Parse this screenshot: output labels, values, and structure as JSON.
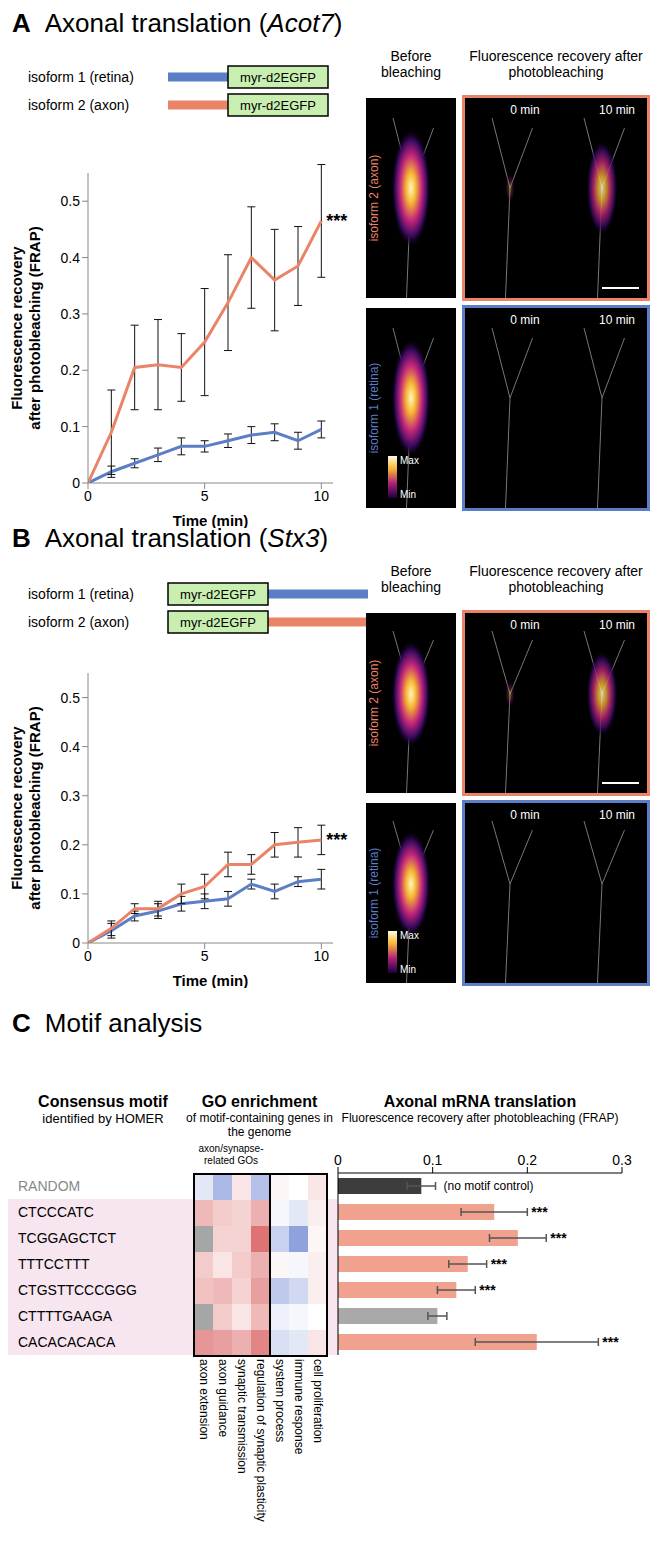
{
  "figure": {
    "image_texts": {
      "before": "Before bleaching",
      "after": "Fluorescence recovery after photobleaching",
      "times": [
        "0 min",
        "10 min"
      ],
      "colorbar": [
        "Max",
        "Min"
      ]
    }
  },
  "chart_data": [
    {
      "panel": "A",
      "type": "line",
      "title": "Axonal translation (Acot7)",
      "title_italic": "Acot7",
      "construct": "myr-d2EGFP",
      "construct_position": "end",
      "x_label": "Time (min)",
      "y_label": [
        "Fluorescence recovery",
        "after photobleaching (FRAP)"
      ],
      "x": [
        0,
        1,
        2,
        3,
        4,
        5,
        6,
        7,
        8,
        9,
        10
      ],
      "xlim": [
        0,
        10.5
      ],
      "xticks": [
        0,
        5,
        10
      ],
      "ylim": [
        0,
        0.55
      ],
      "yticks": [
        0,
        0.1,
        0.2,
        0.3,
        0.4,
        0.5
      ],
      "series": [
        {
          "name": "isoform 1 (retina)",
          "color": "#5b7ec6",
          "values": [
            0,
            0.02,
            0.035,
            0.05,
            0.065,
            0.065,
            0.075,
            0.085,
            0.09,
            0.075,
            0.095
          ],
          "errors": [
            0,
            0.01,
            0.008,
            0.012,
            0.015,
            0.01,
            0.012,
            0.015,
            0.015,
            0.015,
            0.015
          ]
        },
        {
          "name": "isoform 2 (axon)",
          "color": "#ea8468",
          "values": [
            0,
            0.09,
            0.205,
            0.21,
            0.205,
            0.25,
            0.32,
            0.4,
            0.36,
            0.385,
            0.465
          ],
          "errors": [
            0,
            0.075,
            0.075,
            0.08,
            0.06,
            0.095,
            0.085,
            0.09,
            0.09,
            0.07,
            0.1
          ]
        }
      ],
      "annotation": {
        "text": "***",
        "x": 10,
        "series": "isoform 2 (axon)"
      }
    },
    {
      "panel": "B",
      "type": "line",
      "title": "Axonal translation (Stx3)",
      "title_italic": "Stx3",
      "construct": "myr-d2EGFP",
      "construct_position": "start",
      "x_label": "Time (min)",
      "y_label": [
        "Fluorescence recovery",
        "after photobleaching (FRAP)"
      ],
      "x": [
        0,
        1,
        2,
        3,
        4,
        5,
        6,
        7,
        8,
        9,
        10
      ],
      "xlim": [
        0,
        10.5
      ],
      "xticks": [
        0,
        5,
        10
      ],
      "ylim": [
        0,
        0.55
      ],
      "yticks": [
        0,
        0.1,
        0.2,
        0.3,
        0.4,
        0.5
      ],
      "series": [
        {
          "name": "isoform 1 (retina)",
          "color": "#5b7ec6",
          "values": [
            0,
            0.025,
            0.055,
            0.065,
            0.08,
            0.085,
            0.09,
            0.12,
            0.105,
            0.125,
            0.13
          ],
          "errors": [
            0,
            0.015,
            0.01,
            0.015,
            0.015,
            0.015,
            0.015,
            0.01,
            0.015,
            0.01,
            0.02
          ]
        },
        {
          "name": "isoform 2 (axon)",
          "color": "#ea8468",
          "values": [
            0,
            0.03,
            0.07,
            0.07,
            0.1,
            0.115,
            0.16,
            0.16,
            0.2,
            0.205,
            0.21
          ],
          "errors": [
            0,
            0.015,
            0.01,
            0.015,
            0.02,
            0.025,
            0.025,
            0.02,
            0.025,
            0.03,
            0.03
          ]
        }
      ],
      "annotation": {
        "text": "***",
        "x": 10,
        "series": "isoform 2 (axon)"
      }
    },
    {
      "panel": "C",
      "type": "bar",
      "orientation": "horizontal",
      "title": "Motif analysis",
      "category_header": [
        "Consensus motif",
        "identified by HOMER"
      ],
      "x_label": [
        "Axonal mRNA translation",
        "Fluorescence recovery after photobleaching (FRAP)"
      ],
      "categories": [
        "RANDOM",
        "CTCCCATC",
        "TCGGAGCTCT",
        "TTTCCTTT",
        "CTGSTTCCCGGG",
        "CTTTTGAAGA",
        "CACACACACA"
      ],
      "values": [
        0.088,
        0.165,
        0.19,
        0.137,
        0.125,
        0.105,
        0.21
      ],
      "errors": [
        0.015,
        0.035,
        0.03,
        0.02,
        0.02,
        0.01,
        0.065
      ],
      "colors": [
        "#3d3d3d",
        "#f0a28e",
        "#f0a28e",
        "#f0a28e",
        "#f0a28e",
        "#a9a9a9",
        "#f0a28e"
      ],
      "significance": [
        null,
        "***",
        "***",
        "***",
        "***",
        null,
        "***"
      ],
      "annotation": {
        "category": "RANDOM",
        "text": "(no motif control)"
      },
      "xlim": [
        0,
        0.3
      ],
      "xticks": [
        0,
        0.1,
        0.2,
        0.3
      ],
      "heatmap": {
        "title": [
          "GO enrichment",
          "of motif-containing genes in the genome"
        ],
        "group_label": "axon/synapse-related GOs",
        "group_size": 4,
        "columns": [
          "axon extension",
          "axon guidance",
          "synaptic transmission",
          "regulation of synaptic plasticity",
          "system process",
          "immune response",
          "cell proliferation"
        ],
        "cell_range": [
          -1,
          1
        ],
        "cells": [
          [
            -0.15,
            -0.45,
            0.15,
            -0.4,
            0.05,
            0,
            0.15
          ],
          [
            0.4,
            0.3,
            0.25,
            0.45,
            -0.05,
            -0.15,
            0.1
          ],
          [
            null,
            0.25,
            0.25,
            0.8,
            -0.3,
            -0.6,
            0.05
          ],
          [
            0.3,
            0.15,
            0.3,
            0.45,
            0.05,
            -0.05,
            0.1
          ],
          [
            0.35,
            0.4,
            0.25,
            0.55,
            -0.35,
            -0.25,
            0.1
          ],
          [
            null,
            0.3,
            0.15,
            0.4,
            -0.1,
            -0.05,
            0
          ],
          [
            0.6,
            0.55,
            0.45,
            0.7,
            -0.2,
            -0.15,
            0.15
          ]
        ]
      }
    }
  ]
}
